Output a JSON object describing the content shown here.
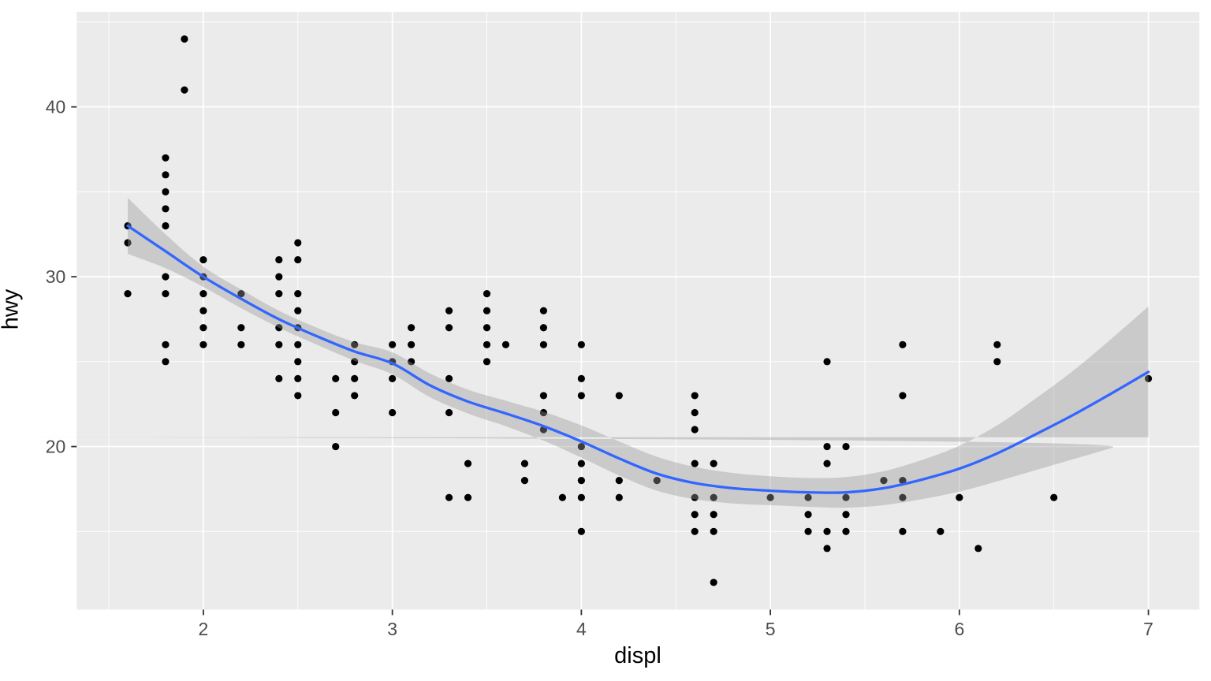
{
  "chart_data": {
    "type": "scatter",
    "title": "",
    "xlabel": "displ",
    "ylabel": "hwy",
    "x_ticks": [
      2,
      3,
      4,
      5,
      6,
      7
    ],
    "y_ticks": [
      20,
      30,
      40
    ],
    "x_minor_ticks": [
      1.5,
      2.5,
      3.5,
      4.5,
      5.5,
      6.5
    ],
    "y_minor_ticks": [
      15,
      25,
      35,
      45
    ],
    "xlim": [
      1.33,
      7.27
    ],
    "ylim": [
      10.4,
      45.6
    ],
    "grid": "on",
    "legend": "none",
    "points": [
      [
        1.6,
        33
      ],
      [
        1.6,
        32
      ],
      [
        1.6,
        29
      ],
      [
        1.8,
        37
      ],
      [
        1.8,
        36
      ],
      [
        1.8,
        35
      ],
      [
        1.8,
        34
      ],
      [
        1.8,
        33
      ],
      [
        1.8,
        30
      ],
      [
        1.8,
        29
      ],
      [
        1.8,
        26
      ],
      [
        1.8,
        25
      ],
      [
        1.9,
        44
      ],
      [
        1.9,
        41
      ],
      [
        2.0,
        31
      ],
      [
        2.0,
        30
      ],
      [
        2.0,
        29
      ],
      [
        2.0,
        28
      ],
      [
        2.0,
        27
      ],
      [
        2.0,
        26
      ],
      [
        2.2,
        29
      ],
      [
        2.2,
        27
      ],
      [
        2.2,
        26
      ],
      [
        2.4,
        31
      ],
      [
        2.4,
        30
      ],
      [
        2.4,
        29
      ],
      [
        2.4,
        27
      ],
      [
        2.4,
        26
      ],
      [
        2.4,
        24
      ],
      [
        2.5,
        32
      ],
      [
        2.5,
        31
      ],
      [
        2.5,
        29
      ],
      [
        2.5,
        28
      ],
      [
        2.5,
        27
      ],
      [
        2.5,
        26
      ],
      [
        2.5,
        25
      ],
      [
        2.5,
        24
      ],
      [
        2.5,
        23
      ],
      [
        2.7,
        24
      ],
      [
        2.7,
        22
      ],
      [
        2.7,
        20
      ],
      [
        2.8,
        26
      ],
      [
        2.8,
        25
      ],
      [
        2.8,
        24
      ],
      [
        2.8,
        23
      ],
      [
        3.0,
        26
      ],
      [
        3.0,
        25
      ],
      [
        3.0,
        24
      ],
      [
        3.0,
        22
      ],
      [
        3.1,
        27
      ],
      [
        3.1,
        26
      ],
      [
        3.1,
        25
      ],
      [
        3.3,
        28
      ],
      [
        3.3,
        27
      ],
      [
        3.3,
        24
      ],
      [
        3.3,
        22
      ],
      [
        3.3,
        17
      ],
      [
        3.4,
        19
      ],
      [
        3.4,
        17
      ],
      [
        3.5,
        29
      ],
      [
        3.5,
        28
      ],
      [
        3.5,
        27
      ],
      [
        3.5,
        26
      ],
      [
        3.5,
        25
      ],
      [
        3.6,
        26
      ],
      [
        3.7,
        19
      ],
      [
        3.7,
        18
      ],
      [
        3.8,
        28
      ],
      [
        3.8,
        27
      ],
      [
        3.8,
        26
      ],
      [
        3.8,
        23
      ],
      [
        3.8,
        22
      ],
      [
        3.8,
        21
      ],
      [
        3.9,
        17
      ],
      [
        4.0,
        26
      ],
      [
        4.0,
        24
      ],
      [
        4.0,
        23
      ],
      [
        4.0,
        20
      ],
      [
        4.0,
        19
      ],
      [
        4.0,
        18
      ],
      [
        4.0,
        17
      ],
      [
        4.0,
        15
      ],
      [
        4.2,
        23
      ],
      [
        4.2,
        18
      ],
      [
        4.2,
        17
      ],
      [
        4.4,
        18
      ],
      [
        4.6,
        23
      ],
      [
        4.6,
        22
      ],
      [
        4.6,
        21
      ],
      [
        4.6,
        19
      ],
      [
        4.6,
        17
      ],
      [
        4.6,
        16
      ],
      [
        4.6,
        15
      ],
      [
        4.7,
        19
      ],
      [
        4.7,
        17
      ],
      [
        4.7,
        16
      ],
      [
        4.7,
        15
      ],
      [
        4.7,
        12
      ],
      [
        5.0,
        17
      ],
      [
        5.2,
        17
      ],
      [
        5.2,
        16
      ],
      [
        5.2,
        15
      ],
      [
        5.3,
        25
      ],
      [
        5.3,
        20
      ],
      [
        5.3,
        19
      ],
      [
        5.3,
        15
      ],
      [
        5.3,
        14
      ],
      [
        5.4,
        20
      ],
      [
        5.4,
        17
      ],
      [
        5.4,
        16
      ],
      [
        5.4,
        15
      ],
      [
        5.6,
        18
      ],
      [
        5.7,
        26
      ],
      [
        5.7,
        23
      ],
      [
        5.7,
        18
      ],
      [
        5.7,
        17
      ],
      [
        5.7,
        15
      ],
      [
        5.9,
        15
      ],
      [
        6.0,
        17
      ],
      [
        6.1,
        14
      ],
      [
        6.2,
        26
      ],
      [
        6.2,
        25
      ],
      [
        6.5,
        17
      ],
      [
        7.0,
        24
      ]
    ],
    "smooth": {
      "method": "loess",
      "x": [
        1.6,
        1.8,
        2.0,
        2.2,
        2.4,
        2.6,
        2.8,
        3.0,
        3.2,
        3.4,
        3.6,
        3.8,
        4.0,
        4.2,
        4.4,
        4.6,
        4.8,
        5.0,
        5.2,
        5.4,
        5.6,
        5.8,
        6.0,
        6.2,
        6.4,
        6.6,
        6.8,
        7.0
      ],
      "fit": [
        33.0,
        31.5,
        30.0,
        28.7,
        27.5,
        26.5,
        25.6,
        24.9,
        23.6,
        22.65,
        21.95,
        21.2,
        20.3,
        19.3,
        18.4,
        17.85,
        17.55,
        17.4,
        17.3,
        17.3,
        17.55,
        18.05,
        18.7,
        19.6,
        20.7,
        21.85,
        23.1,
        24.4
      ],
      "half_width": [
        1.65,
        1.0,
        0.6,
        0.55,
        0.5,
        0.5,
        0.55,
        0.65,
        0.7,
        0.7,
        0.75,
        0.85,
        0.95,
        1.0,
        1.0,
        0.95,
        0.9,
        0.85,
        0.85,
        0.9,
        1.0,
        1.15,
        1.35,
        1.65,
        2.1,
        2.6,
        3.2,
        3.85
      ]
    },
    "colors": {
      "point": "#000000",
      "smooth_line": "#3366FF",
      "ribbon": "rgba(153,153,153,0.4)",
      "panel_background": "#EBEBEB",
      "gridline": "#FFFFFF",
      "tick_mark": "#333333",
      "tick_label": "#4D4D4D",
      "axis_title": "#000000",
      "figure_background": "#FFFFFF"
    }
  }
}
